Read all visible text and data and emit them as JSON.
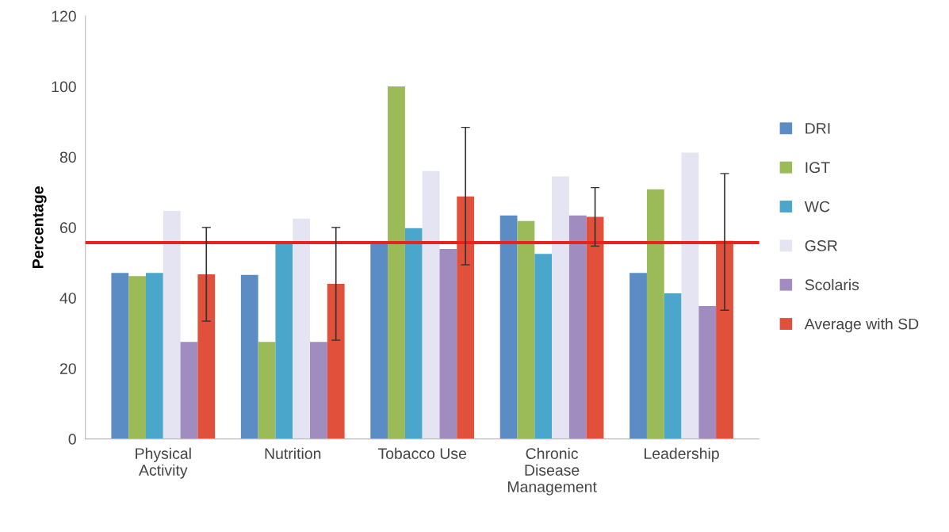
{
  "chart_data": {
    "type": "bar",
    "ylabel": "Percentage",
    "categories": [
      "Physical\nActivity",
      "Nutrition",
      "Tobacco Use",
      "Chronic\nDisease\nManagement",
      "Leadership"
    ],
    "series": [
      {
        "name": "DRI",
        "color": "#5b8cc4",
        "values": [
          47.1,
          46.5,
          55.3,
          63.4,
          47.1
        ]
      },
      {
        "name": "IGT",
        "color": "#9bbb59",
        "values": [
          46.2,
          27.5,
          100,
          61.8,
          70.8
        ]
      },
      {
        "name": "WC",
        "color": "#4ba6cc",
        "values": [
          47.1,
          55.5,
          59.8,
          52.5,
          41.3
        ]
      },
      {
        "name": "GSR",
        "color": "#e4e4f2",
        "values": [
          64.7,
          62.5,
          76,
          74.5,
          81.2
        ]
      },
      {
        "name": "Scolaris",
        "color": "#a18cbf",
        "values": [
          27.5,
          27.5,
          53.9,
          63.4,
          37.7
        ]
      },
      {
        "name": "Average with SD",
        "color": "#e0503a",
        "values": [
          46.7,
          44,
          68.8,
          63,
          56.2
        ],
        "errors": [
          [
            33.4,
            60
          ],
          [
            28,
            60
          ],
          [
            49.4,
            88.4
          ],
          [
            54.7,
            71.3
          ],
          [
            36.5,
            75.3
          ]
        ]
      }
    ],
    "ylim": [
      0,
      120
    ],
    "yticks": [
      0,
      20,
      40,
      60,
      80,
      100,
      120
    ],
    "ref_lines": [
      {
        "axis": "y",
        "value": 55.7,
        "color": "#e8231e",
        "line_style": "solid"
      }
    ],
    "grid": false,
    "legend": "right"
  }
}
